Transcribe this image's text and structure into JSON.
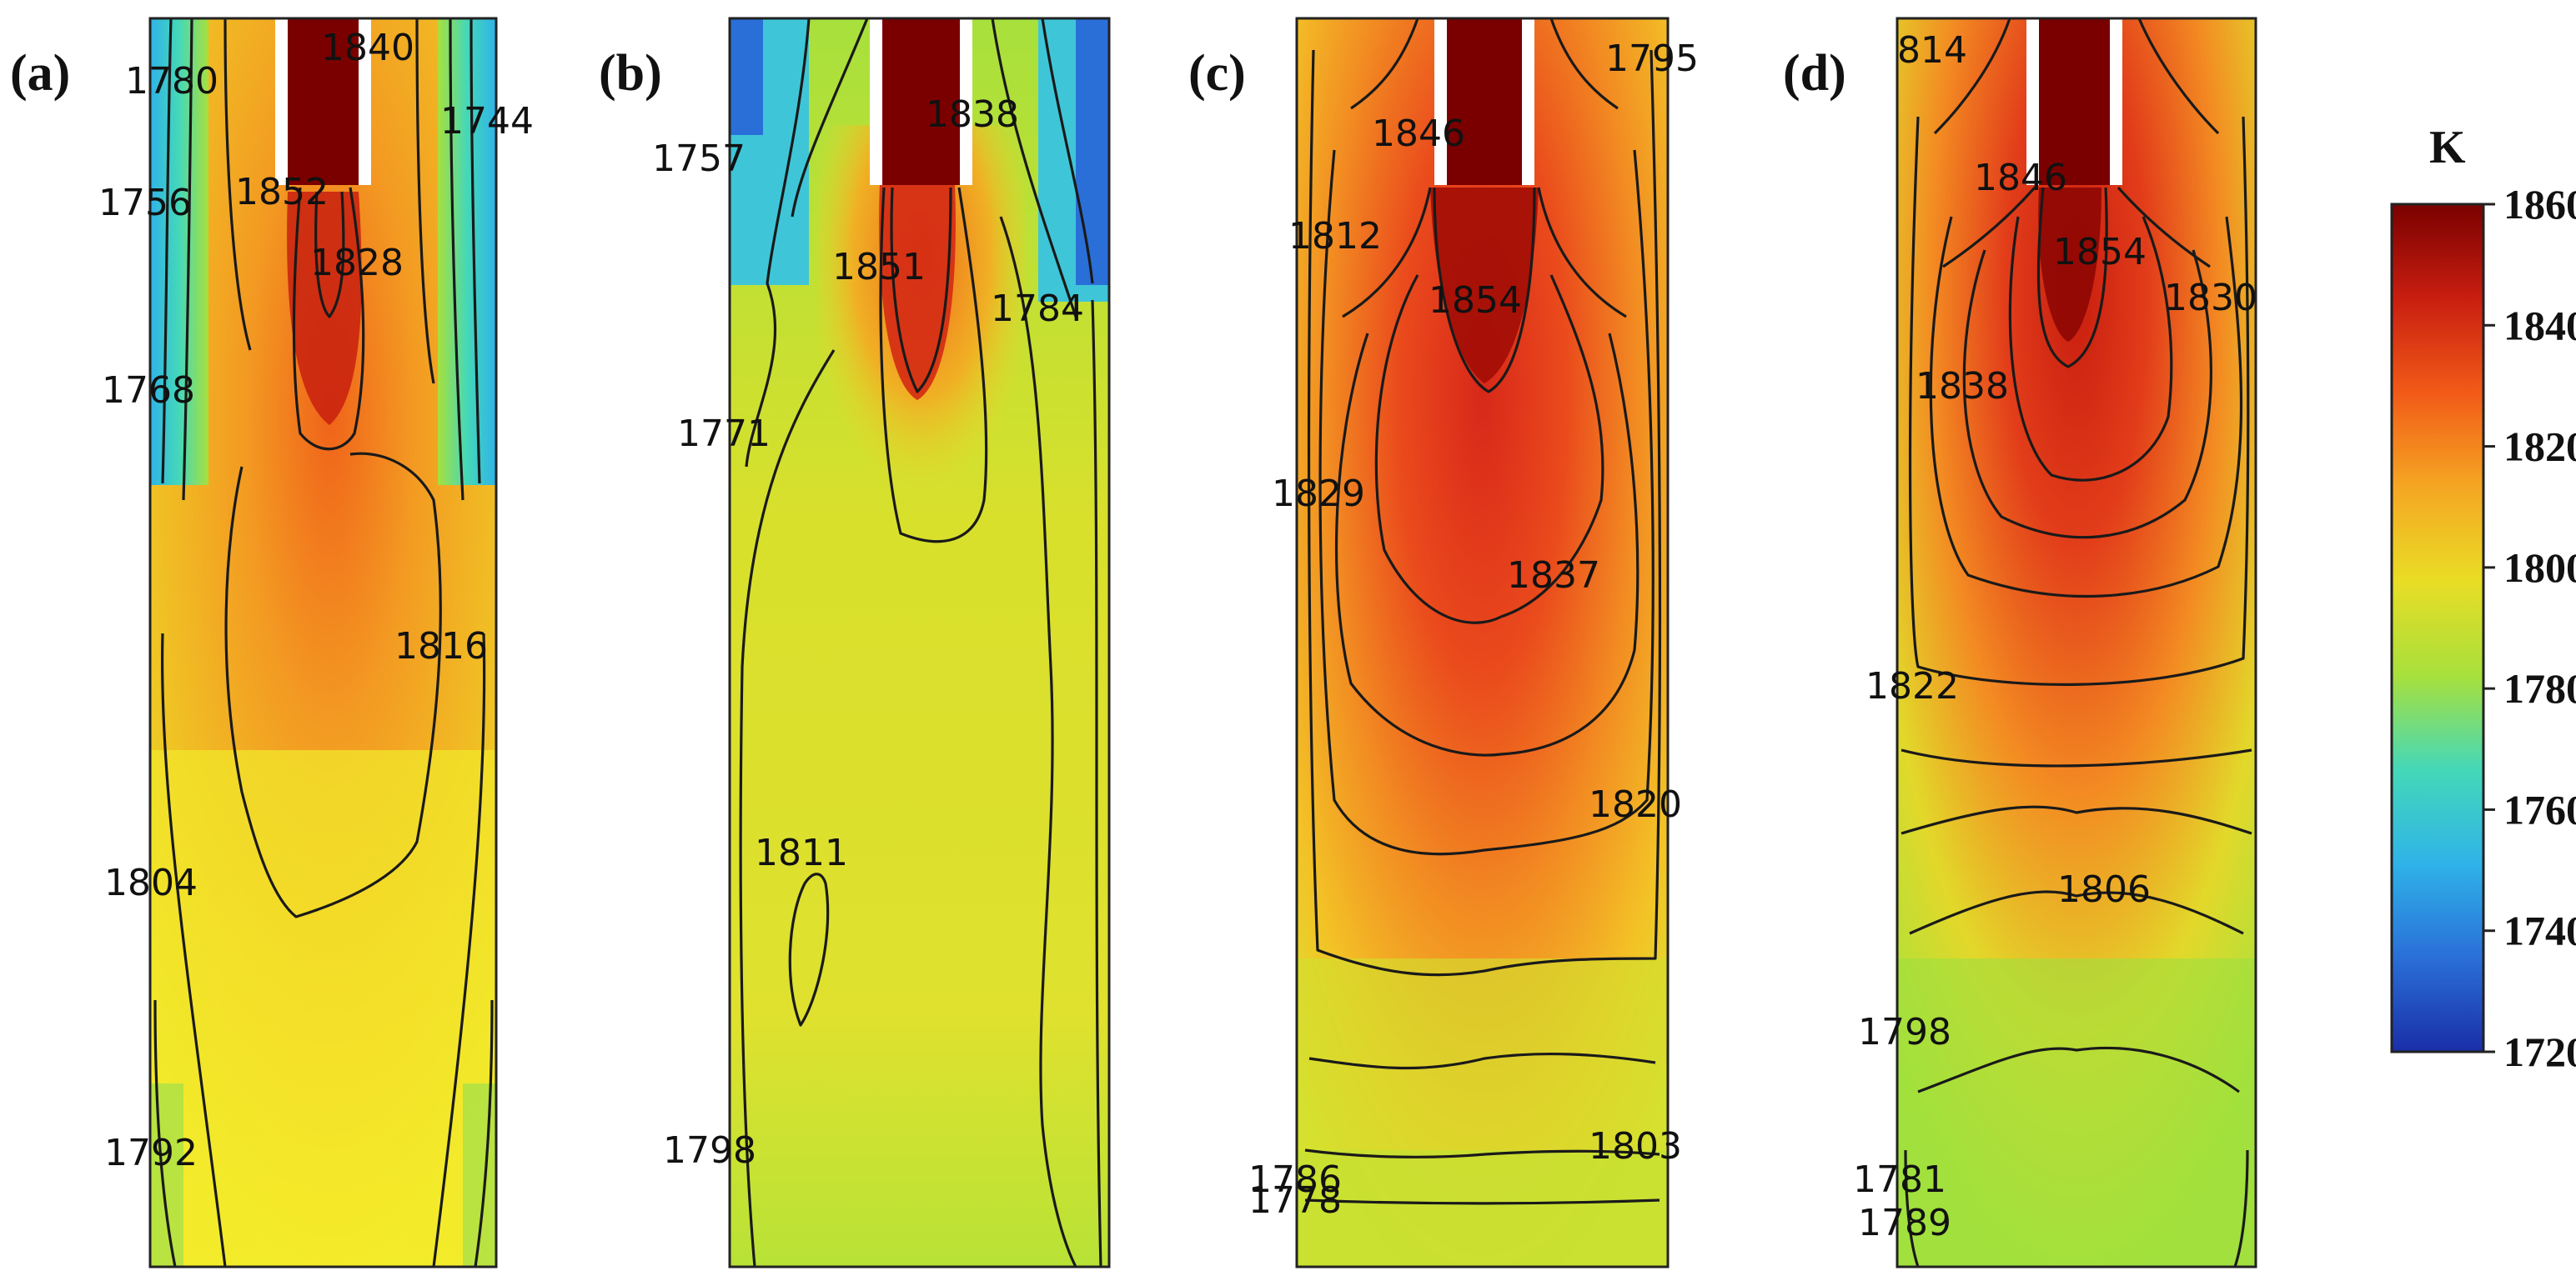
{
  "unit_label": "K",
  "colorbar": {
    "ticks": [
      "1860",
      "1840",
      "1820",
      "1800",
      "1780",
      "1760",
      "1740",
      "1720"
    ],
    "min": 1720,
    "max": 1860,
    "colors": [
      "#7a0000",
      "#c81e10",
      "#f25a18",
      "#f5a623",
      "#e9dd25",
      "#a8e03c",
      "#45d8b8",
      "#2fb3e8",
      "#2a6fd8",
      "#1a2ea8"
    ]
  },
  "panels": [
    {
      "letter": "(a)",
      "labels": [
        "1840",
        "1780",
        "1744",
        "1756",
        "1852",
        "1828",
        "1768",
        "1816",
        "1804",
        "1792"
      ]
    },
    {
      "letter": "(b)",
      "labels": [
        "1838",
        "1757",
        "1851",
        "1784",
        "1771",
        "1811",
        "1798"
      ]
    },
    {
      "letter": "(c)",
      "labels": [
        "1795",
        "1846",
        "1812",
        "1854",
        "1829",
        "1837",
        "1820",
        "1803",
        "1786",
        "1778"
      ]
    },
    {
      "letter": "(d)",
      "labels": [
        "814",
        "1846",
        "1854",
        "1830",
        "1838",
        "1822",
        "1806",
        "1798",
        "1781",
        "1789"
      ]
    }
  ]
}
